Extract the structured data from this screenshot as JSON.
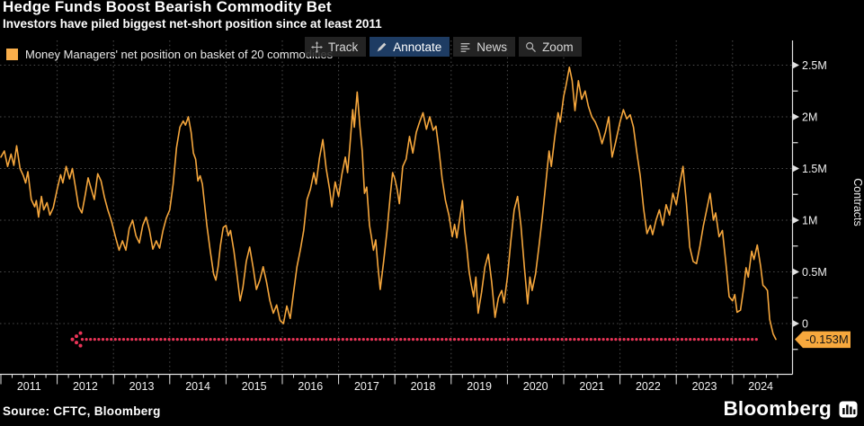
{
  "header": {
    "title": "Hedge Funds Boost Bearish Commodity Bet",
    "subtitle": "Investors have piled biggest net-short position since at least 2011"
  },
  "legend": {
    "label": "Money Managers' net position on basket of 20 commodities",
    "swatch_color": "#f9ae4b"
  },
  "toolbar": {
    "buttons": [
      {
        "label": "Track",
        "icon": "move-crosshair-icon"
      },
      {
        "label": "Annotate",
        "icon": "pencil-icon"
      },
      {
        "label": "News",
        "icon": "news-lines-icon"
      },
      {
        "label": "Zoom",
        "icon": "magnifier-icon"
      }
    ],
    "active_label": "Annotate",
    "active_bg": "#1e3c63"
  },
  "colors": {
    "background": "#000000",
    "line": "#f5a63c",
    "grid": "#4d4d4d",
    "axis": "#e2e2e2",
    "text": "#f0f0f0",
    "reference_red": "#ea3457",
    "tag_bg": "#f7a83d",
    "tag_text": "#141414"
  },
  "chart_data": {
    "type": "line",
    "title": "Hedge Funds Boost Bearish Commodity Bet",
    "ylabel": "Contracts",
    "xlabel": "",
    "grid": true,
    "legend_position": "top-left",
    "unit": "millions of contracts",
    "xlim": [
      2011.0,
      2024.85
    ],
    "ylim": [
      -0.3,
      2.6
    ],
    "y_axis": {
      "major": [
        {
          "value": 0,
          "label": "0"
        },
        {
          "value": 0.5,
          "label": "0.5M"
        },
        {
          "value": 1,
          "label": "1M"
        },
        {
          "value": 1.5,
          "label": "1.5M"
        },
        {
          "value": 2,
          "label": "2M"
        },
        {
          "value": 2.5,
          "label": "2.5M"
        }
      ],
      "minor": [
        -0.25,
        0.25,
        0.75,
        1.25,
        1.75,
        2.25
      ]
    },
    "x_axis": {
      "years": [
        "2011",
        "2012",
        "2013",
        "2014",
        "2015",
        "2016",
        "2017",
        "2018",
        "2019",
        "2020",
        "2021",
        "2022",
        "2023",
        "2024"
      ]
    },
    "reference_line": {
      "value": -0.153,
      "label": "-0.153M",
      "style": "dotted-with-left-arrow",
      "x_start": 2012.27,
      "x_end": 2024.48
    },
    "series": [
      {
        "name": "Money Managers' net position on basket of 20 commodities",
        "color": "#f5a63c",
        "points": [
          [
            2011.0,
            1.61
          ],
          [
            2011.06,
            1.67
          ],
          [
            2011.12,
            1.52
          ],
          [
            2011.18,
            1.64
          ],
          [
            2011.23,
            1.53
          ],
          [
            2011.28,
            1.72
          ],
          [
            2011.34,
            1.5
          ],
          [
            2011.4,
            1.43
          ],
          [
            2011.44,
            1.36
          ],
          [
            2011.48,
            1.47
          ],
          [
            2011.54,
            1.2
          ],
          [
            2011.6,
            1.13
          ],
          [
            2011.63,
            1.19
          ],
          [
            2011.67,
            1.03
          ],
          [
            2011.72,
            1.23
          ],
          [
            2011.76,
            1.1
          ],
          [
            2011.82,
            1.17
          ],
          [
            2011.87,
            1.05
          ],
          [
            2011.93,
            1.12
          ],
          [
            2012.0,
            1.3
          ],
          [
            2012.06,
            1.44
          ],
          [
            2012.1,
            1.36
          ],
          [
            2012.16,
            1.52
          ],
          [
            2012.22,
            1.4
          ],
          [
            2012.27,
            1.5
          ],
          [
            2012.33,
            1.3
          ],
          [
            2012.38,
            1.13
          ],
          [
            2012.44,
            1.07
          ],
          [
            2012.5,
            1.25
          ],
          [
            2012.55,
            1.41
          ],
          [
            2012.6,
            1.31
          ],
          [
            2012.66,
            1.2
          ],
          [
            2012.72,
            1.45
          ],
          [
            2012.78,
            1.38
          ],
          [
            2012.84,
            1.22
          ],
          [
            2012.9,
            1.1
          ],
          [
            2012.96,
            1.0
          ],
          [
            2013.03,
            0.85
          ],
          [
            2013.1,
            0.71
          ],
          [
            2013.16,
            0.8
          ],
          [
            2013.22,
            0.71
          ],
          [
            2013.28,
            0.92
          ],
          [
            2013.34,
            1.0
          ],
          [
            2013.4,
            0.85
          ],
          [
            2013.46,
            0.78
          ],
          [
            2013.52,
            0.95
          ],
          [
            2013.58,
            1.03
          ],
          [
            2013.64,
            0.9
          ],
          [
            2013.7,
            0.72
          ],
          [
            2013.76,
            0.8
          ],
          [
            2013.82,
            0.73
          ],
          [
            2013.88,
            0.9
          ],
          [
            2013.94,
            1.02
          ],
          [
            2014.0,
            1.1
          ],
          [
            2014.06,
            1.35
          ],
          [
            2014.12,
            1.7
          ],
          [
            2014.18,
            1.9
          ],
          [
            2014.24,
            1.96
          ],
          [
            2014.28,
            1.92
          ],
          [
            2014.33,
            2.0
          ],
          [
            2014.38,
            1.85
          ],
          [
            2014.42,
            1.65
          ],
          [
            2014.46,
            1.59
          ],
          [
            2014.5,
            1.38
          ],
          [
            2014.54,
            1.43
          ],
          [
            2014.58,
            1.35
          ],
          [
            2014.62,
            1.15
          ],
          [
            2014.66,
            0.95
          ],
          [
            2014.72,
            0.7
          ],
          [
            2014.78,
            0.48
          ],
          [
            2014.82,
            0.42
          ],
          [
            2014.86,
            0.55
          ],
          [
            2014.9,
            0.75
          ],
          [
            2014.95,
            0.93
          ],
          [
            2015.0,
            0.95
          ],
          [
            2015.04,
            0.85
          ],
          [
            2015.08,
            0.9
          ],
          [
            2015.14,
            0.7
          ],
          [
            2015.2,
            0.45
          ],
          [
            2015.25,
            0.22
          ],
          [
            2015.3,
            0.35
          ],
          [
            2015.36,
            0.6
          ],
          [
            2015.42,
            0.74
          ],
          [
            2015.48,
            0.55
          ],
          [
            2015.54,
            0.33
          ],
          [
            2015.6,
            0.42
          ],
          [
            2015.66,
            0.55
          ],
          [
            2015.72,
            0.4
          ],
          [
            2015.78,
            0.22
          ],
          [
            2015.84,
            0.1
          ],
          [
            2015.9,
            0.18
          ],
          [
            2015.96,
            0.03
          ],
          [
            2016.02,
            0.0
          ],
          [
            2016.08,
            0.17
          ],
          [
            2016.14,
            0.05
          ],
          [
            2016.2,
            0.3
          ],
          [
            2016.26,
            0.55
          ],
          [
            2016.32,
            0.71
          ],
          [
            2016.38,
            0.9
          ],
          [
            2016.44,
            1.2
          ],
          [
            2016.5,
            1.3
          ],
          [
            2016.56,
            1.46
          ],
          [
            2016.6,
            1.35
          ],
          [
            2016.66,
            1.6
          ],
          [
            2016.72,
            1.78
          ],
          [
            2016.78,
            1.5
          ],
          [
            2016.84,
            1.3
          ],
          [
            2016.88,
            1.13
          ],
          [
            2016.94,
            1.37
          ],
          [
            2017.0,
            1.23
          ],
          [
            2017.06,
            1.45
          ],
          [
            2017.12,
            1.61
          ],
          [
            2017.16,
            1.46
          ],
          [
            2017.2,
            1.71
          ],
          [
            2017.25,
            2.07
          ],
          [
            2017.28,
            1.9
          ],
          [
            2017.33,
            2.24
          ],
          [
            2017.38,
            1.9
          ],
          [
            2017.42,
            1.67
          ],
          [
            2017.46,
            1.26
          ],
          [
            2017.5,
            1.32
          ],
          [
            2017.55,
            0.95
          ],
          [
            2017.58,
            0.85
          ],
          [
            2017.62,
            0.71
          ],
          [
            2017.66,
            0.81
          ],
          [
            2017.7,
            0.55
          ],
          [
            2017.74,
            0.33
          ],
          [
            2017.8,
            0.6
          ],
          [
            2017.86,
            0.89
          ],
          [
            2017.92,
            1.25
          ],
          [
            2017.96,
            1.46
          ],
          [
            2018.0,
            1.4
          ],
          [
            2018.04,
            1.3
          ],
          [
            2018.08,
            1.16
          ],
          [
            2018.14,
            1.52
          ],
          [
            2018.2,
            1.59
          ],
          [
            2018.26,
            1.81
          ],
          [
            2018.32,
            1.65
          ],
          [
            2018.38,
            1.85
          ],
          [
            2018.44,
            1.95
          ],
          [
            2018.5,
            2.04
          ],
          [
            2018.56,
            1.88
          ],
          [
            2018.62,
            2.0
          ],
          [
            2018.68,
            1.87
          ],
          [
            2018.73,
            1.91
          ],
          [
            2018.78,
            1.7
          ],
          [
            2018.84,
            1.4
          ],
          [
            2018.9,
            1.19
          ],
          [
            2018.96,
            1.05
          ],
          [
            2019.02,
            0.84
          ],
          [
            2019.06,
            0.96
          ],
          [
            2019.1,
            0.83
          ],
          [
            2019.16,
            1.04
          ],
          [
            2019.2,
            1.19
          ],
          [
            2019.24,
            0.9
          ],
          [
            2019.28,
            0.72
          ],
          [
            2019.32,
            0.5
          ],
          [
            2019.36,
            0.37
          ],
          [
            2019.4,
            0.26
          ],
          [
            2019.44,
            0.45
          ],
          [
            2019.48,
            0.1
          ],
          [
            2019.54,
            0.3
          ],
          [
            2019.6,
            0.55
          ],
          [
            2019.66,
            0.67
          ],
          [
            2019.72,
            0.4
          ],
          [
            2019.78,
            0.06
          ],
          [
            2019.84,
            0.25
          ],
          [
            2019.9,
            0.32
          ],
          [
            2019.94,
            0.2
          ],
          [
            2020.0,
            0.45
          ],
          [
            2020.06,
            0.8
          ],
          [
            2020.12,
            1.1
          ],
          [
            2020.18,
            1.23
          ],
          [
            2020.24,
            0.95
          ],
          [
            2020.3,
            0.55
          ],
          [
            2020.36,
            0.19
          ],
          [
            2020.4,
            0.45
          ],
          [
            2020.44,
            0.32
          ],
          [
            2020.5,
            0.48
          ],
          [
            2020.56,
            0.75
          ],
          [
            2020.62,
            1.03
          ],
          [
            2020.68,
            1.35
          ],
          [
            2020.74,
            1.67
          ],
          [
            2020.78,
            1.52
          ],
          [
            2020.84,
            1.8
          ],
          [
            2020.9,
            2.04
          ],
          [
            2020.94,
            1.95
          ],
          [
            2021.0,
            2.2
          ],
          [
            2021.04,
            2.3
          ],
          [
            2021.1,
            2.48
          ],
          [
            2021.15,
            2.35
          ],
          [
            2021.2,
            2.06
          ],
          [
            2021.26,
            2.35
          ],
          [
            2021.32,
            2.17
          ],
          [
            2021.38,
            2.25
          ],
          [
            2021.44,
            2.1
          ],
          [
            2021.5,
            2.0
          ],
          [
            2021.56,
            1.95
          ],
          [
            2021.62,
            1.87
          ],
          [
            2021.68,
            1.74
          ],
          [
            2021.74,
            1.85
          ],
          [
            2021.8,
            2.0
          ],
          [
            2021.86,
            1.61
          ],
          [
            2021.92,
            1.75
          ],
          [
            2022.0,
            1.95
          ],
          [
            2022.06,
            2.07
          ],
          [
            2022.12,
            1.98
          ],
          [
            2022.18,
            2.02
          ],
          [
            2022.24,
            1.9
          ],
          [
            2022.3,
            1.65
          ],
          [
            2022.36,
            1.43
          ],
          [
            2022.42,
            1.11
          ],
          [
            2022.48,
            0.87
          ],
          [
            2022.54,
            0.95
          ],
          [
            2022.58,
            0.86
          ],
          [
            2022.64,
            1.0
          ],
          [
            2022.7,
            1.1
          ],
          [
            2022.76,
            0.95
          ],
          [
            2022.82,
            1.15
          ],
          [
            2022.88,
            1.05
          ],
          [
            2022.94,
            1.26
          ],
          [
            2023.0,
            1.15
          ],
          [
            2023.06,
            1.35
          ],
          [
            2023.12,
            1.52
          ],
          [
            2023.18,
            1.16
          ],
          [
            2023.24,
            0.74
          ],
          [
            2023.3,
            0.6
          ],
          [
            2023.36,
            0.58
          ],
          [
            2023.42,
            0.75
          ],
          [
            2023.48,
            0.94
          ],
          [
            2023.54,
            1.1
          ],
          [
            2023.6,
            1.26
          ],
          [
            2023.66,
            1.0
          ],
          [
            2023.7,
            1.07
          ],
          [
            2023.76,
            0.84
          ],
          [
            2023.82,
            0.9
          ],
          [
            2023.88,
            0.59
          ],
          [
            2023.94,
            0.26
          ],
          [
            2024.0,
            0.22
          ],
          [
            2024.04,
            0.28
          ],
          [
            2024.08,
            0.11
          ],
          [
            2024.14,
            0.13
          ],
          [
            2024.2,
            0.35
          ],
          [
            2024.24,
            0.54
          ],
          [
            2024.28,
            0.45
          ],
          [
            2024.34,
            0.7
          ],
          [
            2024.38,
            0.62
          ],
          [
            2024.44,
            0.76
          ],
          [
            2024.5,
            0.55
          ],
          [
            2024.54,
            0.37
          ],
          [
            2024.58,
            0.35
          ],
          [
            2024.62,
            0.32
          ],
          [
            2024.66,
            0.04
          ],
          [
            2024.72,
            -0.1
          ],
          [
            2024.77,
            -0.153
          ]
        ]
      }
    ]
  },
  "footer": {
    "source": "Source: CFTC, Bloomberg",
    "brand": "Bloomberg"
  }
}
